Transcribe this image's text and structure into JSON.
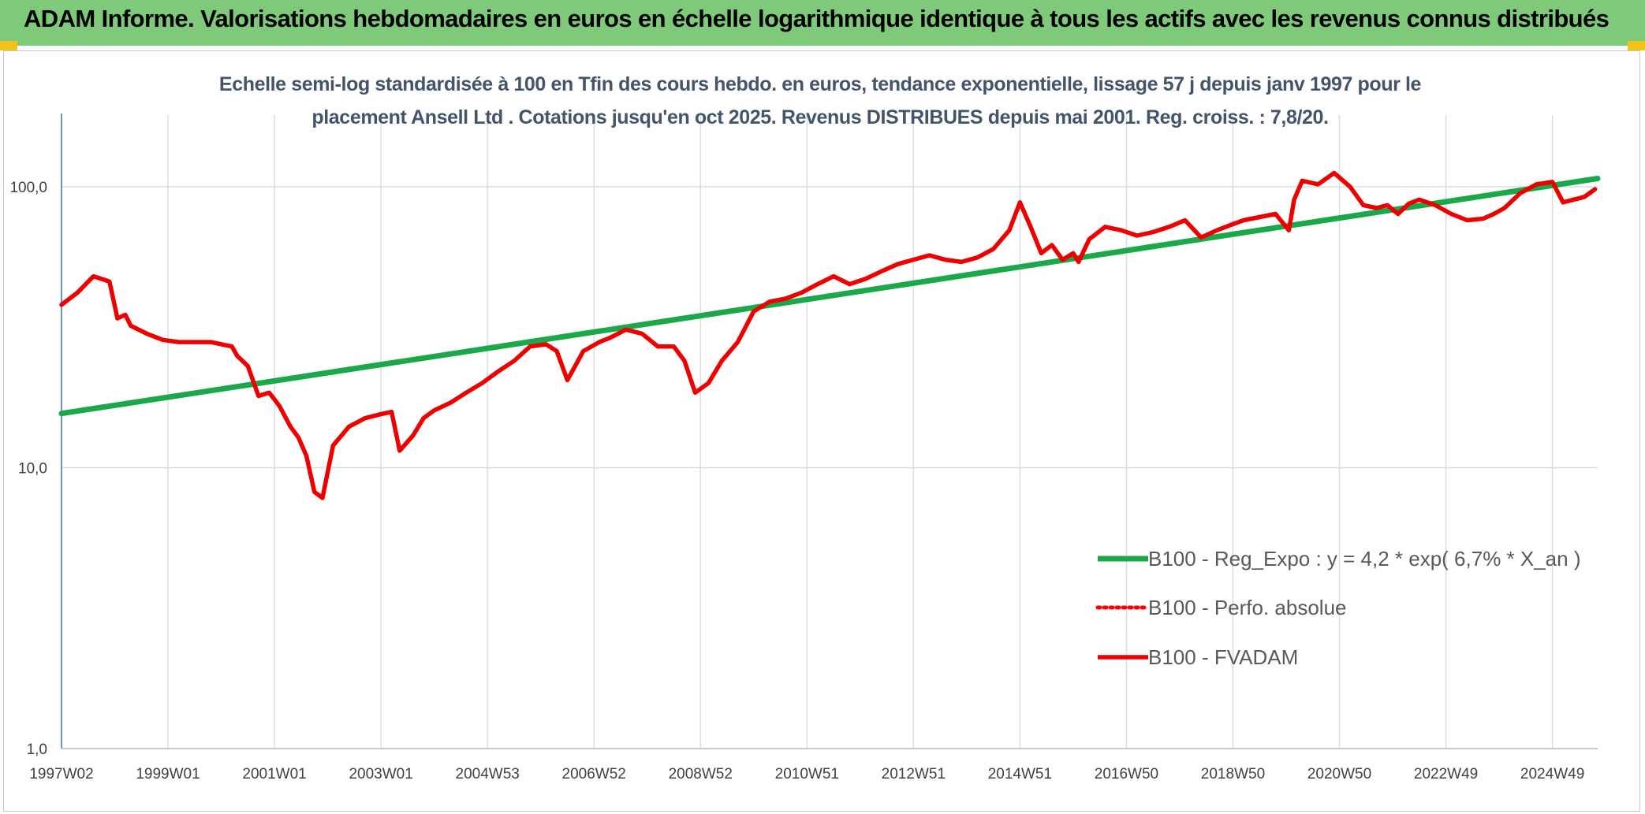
{
  "page": {
    "title": "ADAM Informe. Valorisations hebdomadaires en euros en échelle logarithmique identique à tous les actifs avec les revenus connus distribués"
  },
  "colors": {
    "banner": "#7fc97b",
    "accent_corner": "#f2c21b",
    "regression": "#1aa84a",
    "perfo": "#ff0000",
    "fvadam": "#ee0000",
    "grid": "#d9dde3",
    "axis": "#4472c4"
  },
  "chart_data": {
    "type": "line",
    "subtitle_lines": [
      "Echelle semi-log standardisée à 100 en Tfin des cours hebdo. en euros, tendance exponentielle, lissage 57 j depuis janv 1997 pour le",
      "placement Ansell Ltd . Cotations jusqu'en oct 2025. Revenus DISTRIBUES depuis mai 2001. Reg. croiss. : 7,8/20."
    ],
    "y_scale": "log",
    "ylim": [
      1,
      180
    ],
    "y_ticks": [
      {
        "value": 1,
        "label": "1,0"
      },
      {
        "value": 10,
        "label": "10,0"
      },
      {
        "value": 100,
        "label": "100,0"
      }
    ],
    "xlim": [
      1997.0,
      2025.85
    ],
    "x_ticks": [
      {
        "value": 1997.0,
        "label": "1997W02"
      },
      {
        "value": 1999.0,
        "label": "1999W01"
      },
      {
        "value": 2001.0,
        "label": "2001W01"
      },
      {
        "value": 2003.0,
        "label": "2003W01"
      },
      {
        "value": 2005.0,
        "label": "2004W53"
      },
      {
        "value": 2007.0,
        "label": "2006W52"
      },
      {
        "value": 2009.0,
        "label": "2008W52"
      },
      {
        "value": 2011.0,
        "label": "2010W51"
      },
      {
        "value": 2013.0,
        "label": "2012W51"
      },
      {
        "value": 2015.0,
        "label": "2014W51"
      },
      {
        "value": 2017.0,
        "label": "2016W50"
      },
      {
        "value": 2019.0,
        "label": "2018W50"
      },
      {
        "value": 2021.0,
        "label": "2020W50"
      },
      {
        "value": 2023.0,
        "label": "2022W49"
      },
      {
        "value": 2025.0,
        "label": "2024W49"
      }
    ],
    "grid": true,
    "legend_position": "bottom-right",
    "series": [
      {
        "name": "B100 - Reg_Expo : y = 4,2 * exp( 6,7% *  X_an )",
        "style": "solid-thick",
        "color": "#1aa84a",
        "x": [
          1997.0,
          2025.85
        ],
        "y": [
          15.6,
          107.0
        ]
      },
      {
        "name": "B100 - Perfo. absolue",
        "style": "dotted",
        "color": "#ff0000",
        "x": [],
        "y": []
      },
      {
        "name": "B100 - FVADAM",
        "style": "solid",
        "color": "#ee0000",
        "x": [
          1997.0,
          1997.3,
          1997.6,
          1997.9,
          1998.05,
          1998.2,
          1998.3,
          1998.6,
          1998.9,
          1999.2,
          1999.5,
          1999.8,
          2000.2,
          2000.3,
          2000.5,
          2000.7,
          2000.9,
          2001.0,
          2001.1,
          2001.3,
          2001.45,
          2001.6,
          2001.75,
          2001.9,
          2002.1,
          2002.4,
          2002.7,
          2003.0,
          2003.2,
          2003.35,
          2003.6,
          2003.8,
          2004.0,
          2004.3,
          2004.6,
          2004.9,
          2005.2,
          2005.5,
          2005.8,
          2006.1,
          2006.3,
          2006.5,
          2006.8,
          2007.1,
          2007.3,
          2007.6,
          2007.9,
          2008.2,
          2008.5,
          2008.7,
          2008.9,
          2009.15,
          2009.4,
          2009.7,
          2010.0,
          2010.3,
          2010.6,
          2010.9,
          2011.2,
          2011.5,
          2011.8,
          2012.1,
          2012.4,
          2012.7,
          2013.0,
          2013.3,
          2013.6,
          2013.9,
          2014.2,
          2014.5,
          2014.8,
          2015.0,
          2015.2,
          2015.4,
          2015.6,
          2015.8,
          2016.0,
          2016.1,
          2016.3,
          2016.6,
          2016.9,
          2017.2,
          2017.5,
          2017.8,
          2018.1,
          2018.4,
          2018.7,
          2018.95,
          2019.2,
          2019.5,
          2019.8,
          2020.05,
          2020.15,
          2020.3,
          2020.6,
          2020.9,
          2021.2,
          2021.45,
          2021.7,
          2021.9,
          2022.1,
          2022.3,
          2022.5,
          2022.8,
          2023.1,
          2023.4,
          2023.7,
          2023.9,
          2024.1,
          2024.4,
          2024.7,
          2025.0,
          2025.2,
          2025.4,
          2025.6,
          2025.8
        ],
        "y": [
          38,
          42,
          48,
          46,
          34,
          35,
          32,
          30,
          28.5,
          28,
          28,
          28,
          27,
          25,
          23,
          18,
          18.5,
          17.5,
          16.5,
          14,
          12.8,
          11,
          8.2,
          7.8,
          12,
          14,
          15,
          15.5,
          15.8,
          11.5,
          13,
          15,
          16,
          17,
          18.5,
          20,
          22,
          24,
          27,
          27.5,
          26,
          20.5,
          26,
          28,
          29,
          31,
          30,
          27,
          27,
          24,
          18.5,
          20,
          24,
          28,
          36,
          39,
          40,
          42,
          45,
          48,
          45,
          47,
          50,
          53,
          55,
          57,
          55,
          54,
          56,
          60,
          70,
          88,
          72,
          58,
          62,
          55,
          58,
          54,
          65,
          72,
          70,
          67,
          69,
          72,
          76,
          66,
          70,
          73,
          76,
          78,
          80,
          70,
          90,
          105,
          102,
          112,
          100,
          86,
          84,
          86,
          80,
          87,
          90,
          86,
          80,
          76,
          77,
          80,
          84,
          95,
          102,
          104,
          88,
          90,
          92,
          98
        ]
      }
    ]
  }
}
